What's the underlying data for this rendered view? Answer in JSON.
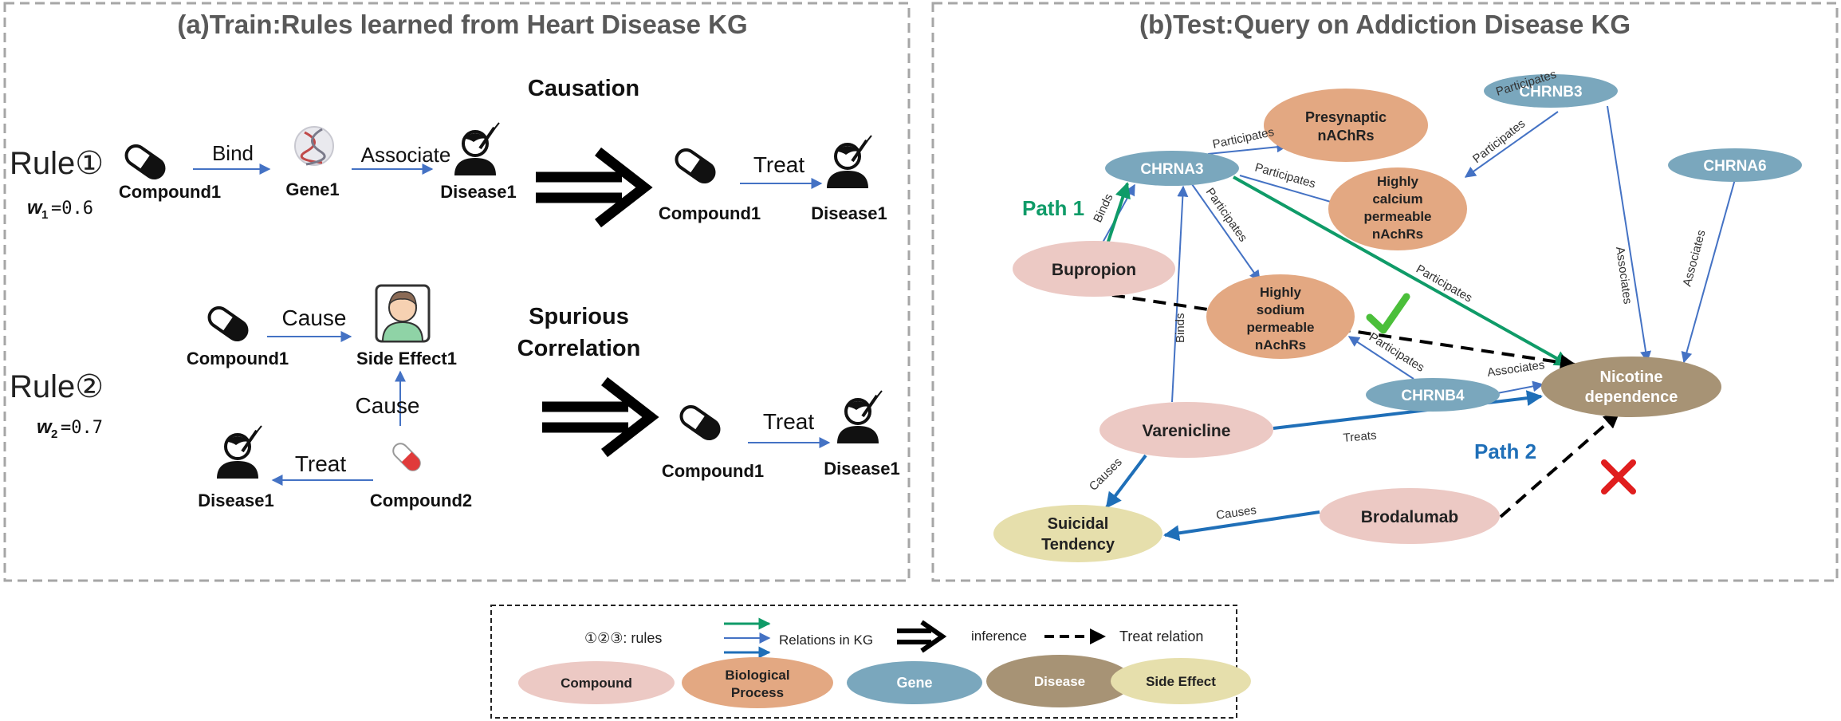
{
  "panel_a": {
    "title": "(a)Train:Rules learned from Heart Disease KG",
    "causation_label": "Causation",
    "spurious_label_line1": "Spurious",
    "spurious_label_line2": "Correlation",
    "rule1": {
      "label": "Rule①",
      "weight_symbol": "w",
      "weight_sub": "1",
      "weight_value": "=0.6"
    },
    "rule2": {
      "label": "Rule②",
      "weight_symbol": "w",
      "weight_sub": "2",
      "weight_value": "=0.7"
    },
    "r1_compound": "Compound1",
    "r1_gene": "Gene1",
    "r1_disease": "Disease1",
    "r1_bind": "Bind",
    "r1_associate": "Associate",
    "r1_out_compound": "Compound1",
    "r1_out_disease": "Disease1",
    "r1_treat": "Treat",
    "r2_compound1": "Compound1",
    "r2_side_effect": "Side Effect1",
    "r2_cause_top": "Cause",
    "r2_cause_vertical": "Cause",
    "r2_disease": "Disease1",
    "r2_compound2": "Compound2",
    "r2_treat": "Treat",
    "r2_out_compound": "Compound1",
    "r2_out_disease": "Disease1",
    "r2_out_treat": "Treat"
  },
  "panel_b": {
    "title": "(b)Test:Query on Addiction Disease KG",
    "path1": "Path 1",
    "path2": "Path 2",
    "nodes": {
      "chrna3": "CHRNA3",
      "chrnb3": "CHRNB3",
      "chrna6": "CHRNA6",
      "chrnb4": "CHRNB4",
      "presyn_l1": "Presynaptic",
      "presyn_l2": "nAChRs",
      "calcium_l1": "Highly",
      "calcium_l2": "calcium",
      "calcium_l3": "permeable",
      "calcium_l4": "nAchRs",
      "sodium_l1": "Highly",
      "sodium_l2": "sodium",
      "sodium_l3": "permeable",
      "sodium_l4": "nAchRs",
      "bupropion": "Bupropion",
      "varenicline": "Varenicline",
      "brodalumab": "Brodalumab",
      "suicidal_l1": "Suicidal",
      "suicidal_l2": "Tendency",
      "nicotine_l1": "Nicotine",
      "nicotine_l2": "dependence"
    },
    "edges": {
      "participates": "Participates",
      "binds": "Binds",
      "associates": "Associates",
      "treats": "Treats",
      "causes": "Causes"
    }
  },
  "legend": {
    "rules": "①②③:  rules",
    "relations": "Relations in KG",
    "inference": "inference",
    "treat_relation": "Treat relation",
    "compound": "Compound",
    "bio_l1": "Biological",
    "bio_l2": "Process",
    "gene": "Gene",
    "disease": "Disease",
    "side_effect": "Side Effect"
  },
  "colors": {
    "compound": "#ecc9c4",
    "biological_process": "#e3a882",
    "gene": "#7aa7bd",
    "disease": "#a79375",
    "side_effect": "#e6dfac",
    "relation_blue": "#4472c4",
    "path_green": "#0f9b68",
    "path_blue": "#1f6fb8",
    "check_green": "#4bbf3a",
    "cross_red": "#e01e1e"
  }
}
